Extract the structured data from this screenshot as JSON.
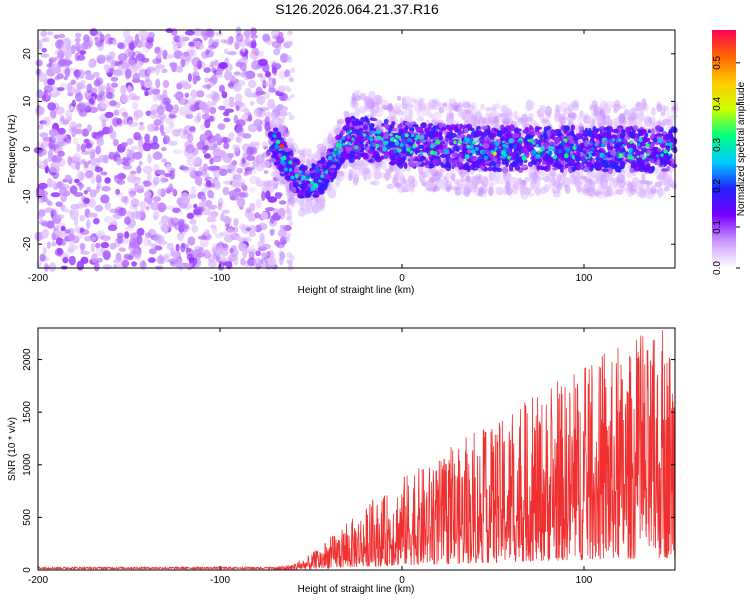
{
  "title": "S126.2026.064.21.37.R16",
  "chart_data": [
    {
      "type": "heatmap",
      "title": "",
      "xlabel": "Height of straight line (km)",
      "ylabel": "Frequency (Hz)",
      "xlim": [
        -200,
        150
      ],
      "ylim": [
        -25,
        25
      ],
      "xticks": [
        -200,
        -100,
        0,
        100
      ],
      "yticks": [
        -20,
        -10,
        0,
        10,
        20
      ],
      "xtick_labels": [
        "-200",
        "-100",
        "0",
        "100"
      ],
      "ytick_labels": [
        "-20",
        "-10",
        "0",
        "10",
        "20"
      ],
      "colorbar": {
        "label": "Normalized spectral amplitude",
        "range": [
          0,
          0.58
        ],
        "ticks": [
          0.0,
          0.1,
          0.2,
          0.3,
          0.4,
          0.5
        ],
        "tick_labels": [
          "0.0",
          "0.1",
          "0.2",
          "0.3",
          "0.4",
          "0.5"
        ],
        "colormap": [
          "#ffffff",
          "#cc99ff",
          "#7a00ff",
          "#2222ff",
          "#00ccff",
          "#00ff80",
          "#ccff00",
          "#ffcc00",
          "#ff6600",
          "#ff0055"
        ]
      },
      "ridge": {
        "x": [
          -70,
          -65,
          -60,
          -55,
          -50,
          -45,
          -40,
          -35,
          -30,
          -20,
          0,
          50,
          100,
          150
        ],
        "y": [
          1,
          -2,
          -5,
          -7,
          -7,
          -6,
          -4,
          -1,
          2,
          2,
          1,
          0,
          0,
          0
        ]
      },
      "noise_region_x": [
        -200,
        -63
      ]
    },
    {
      "type": "line",
      "title": "",
      "xlabel": "Height of straight line (km)",
      "ylabel": "SNR (10 * v/v)",
      "xlim": [
        -200,
        150
      ],
      "ylim": [
        0,
        2300
      ],
      "xticks": [
        -200,
        -100,
        0,
        100
      ],
      "yticks": [
        0,
        500,
        1000,
        1500,
        2000
      ],
      "xtick_labels": [
        "-200",
        "-100",
        "0",
        "100"
      ],
      "ytick_labels": [
        "0",
        "500",
        "1000",
        "1500",
        "2000"
      ],
      "color": "#f03030",
      "envelope": {
        "x": [
          -200,
          -100,
          -70,
          -60,
          -50,
          -40,
          -30,
          -20,
          -10,
          0,
          20,
          40,
          60,
          80,
          100,
          120,
          140,
          150
        ],
        "y": [
          25,
          25,
          30,
          60,
          150,
          300,
          450,
          600,
          700,
          900,
          1050,
          1250,
          1500,
          1700,
          1900,
          2050,
          2200,
          2250
        ]
      }
    }
  ]
}
